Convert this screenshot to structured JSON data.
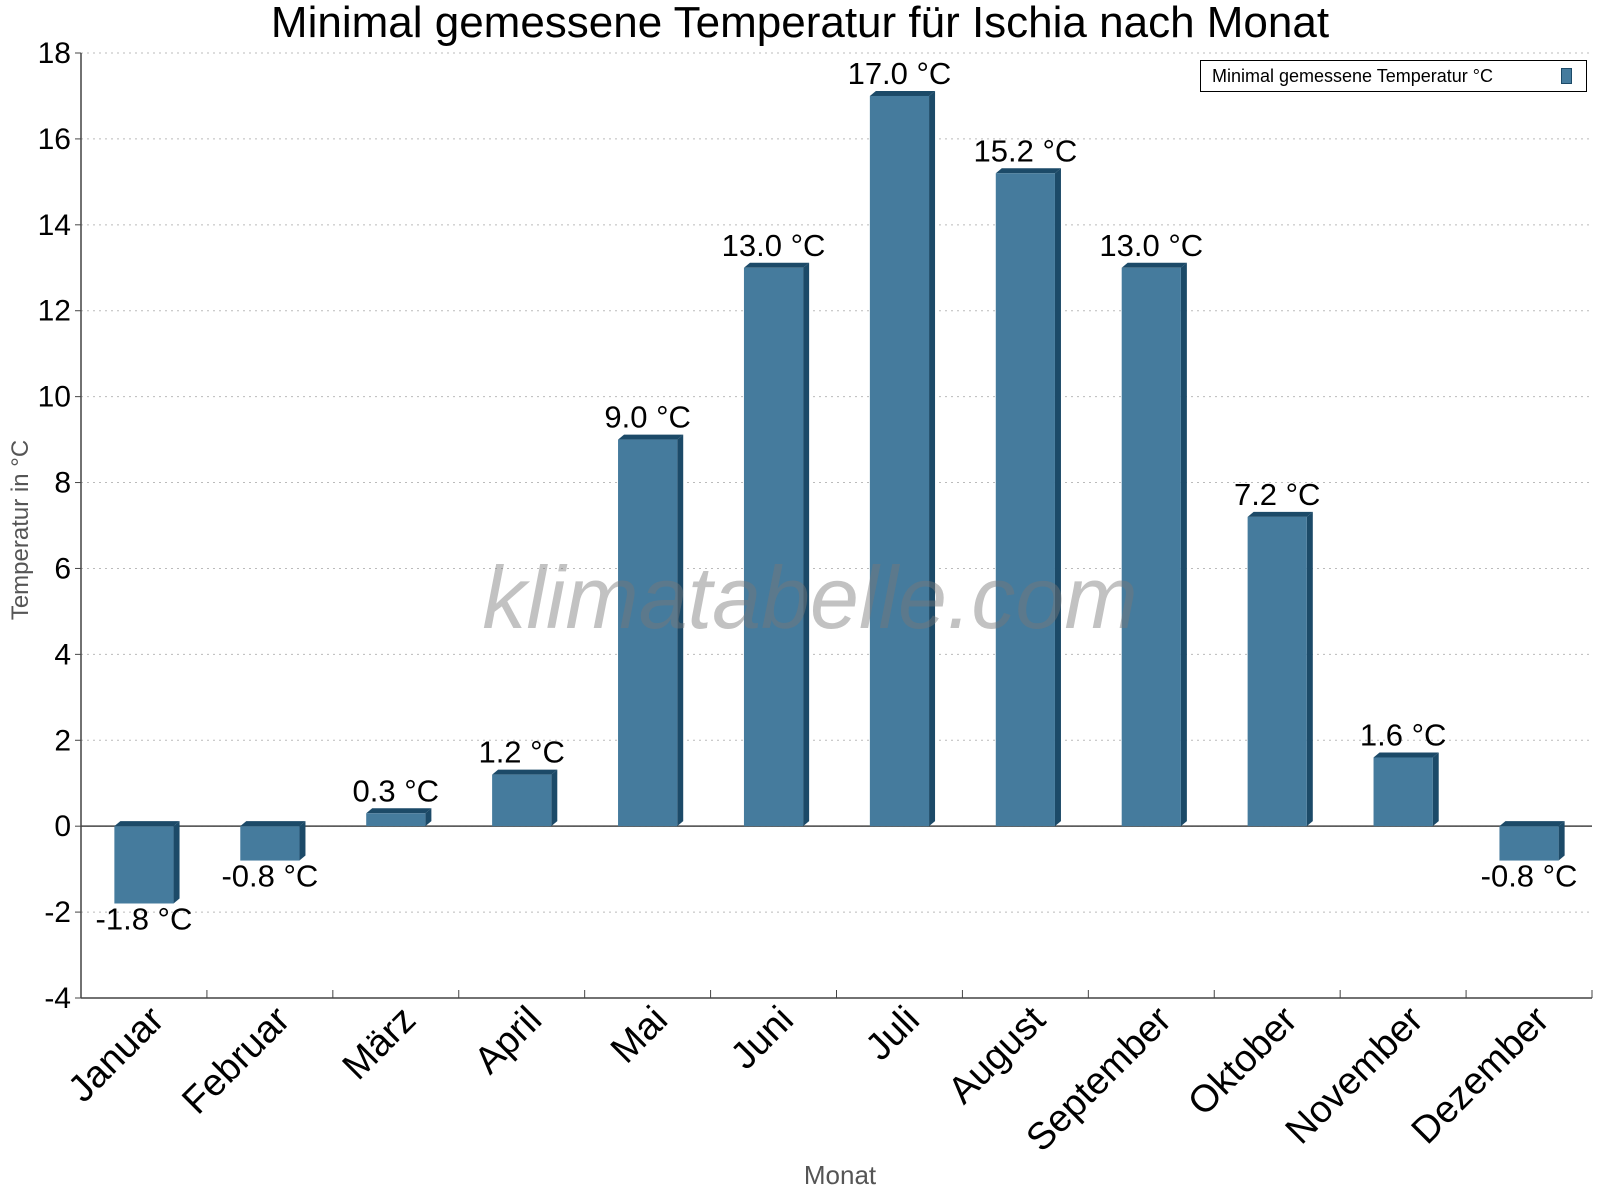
{
  "title": "Minimal gemessene Temperatur für Ischia nach Monat",
  "watermark": "klimatabelle.com",
  "legend": {
    "label": "Minimal gemessene Temperatur °C"
  },
  "colors": {
    "bar_front": "#457b9d",
    "bar_side": "#1c4a68",
    "bar_top": "#1c4a68",
    "grid": "#bbbbbb",
    "axis": "#444444"
  },
  "chart_data": {
    "type": "bar",
    "title": "Minimal gemessene Temperatur für Ischia nach Monat",
    "xlabel": "Monat",
    "ylabel": "Temperatur in °C",
    "ylim": [
      -4,
      18
    ],
    "yticks": [
      -4,
      -2,
      0,
      2,
      4,
      6,
      8,
      10,
      12,
      14,
      16,
      18
    ],
    "grid": true,
    "legend_position": "top-right",
    "categories": [
      "Januar",
      "Februar",
      "März",
      "April",
      "Mai",
      "Juni",
      "Juli",
      "August",
      "September",
      "Oktober",
      "November",
      "Dezember"
    ],
    "series": [
      {
        "name": "Minimal gemessene Temperatur °C",
        "values": [
          -1.8,
          -0.8,
          0.3,
          1.2,
          9.0,
          13.0,
          17.0,
          15.2,
          13.0,
          7.2,
          1.6,
          -0.8
        ],
        "labels": [
          "-1.8 °C",
          "-0.8 °C",
          "0.3 °C",
          "1.2 °C",
          "9.0 °C",
          "13.0 °C",
          "17.0 °C",
          "15.2 °C",
          "13.0 °C",
          "7.2 °C",
          "1.6 °C",
          "-0.8 °C"
        ]
      }
    ]
  }
}
